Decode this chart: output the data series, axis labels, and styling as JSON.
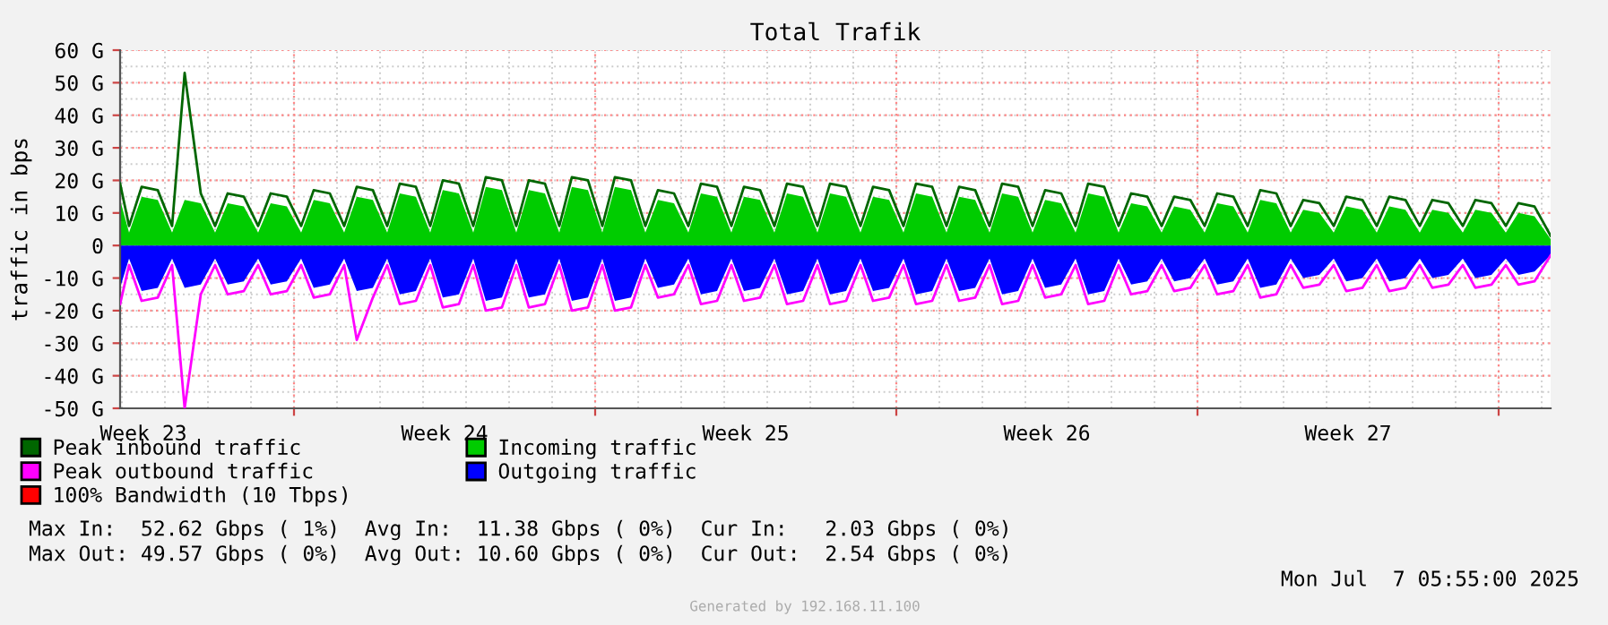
{
  "chart_data": {
    "type": "area",
    "title": "Total Trafik",
    "ylabel": "traffic in bps",
    "x": [
      "2025-06-04T23:00",
      "2025-06-05T04:00",
      "2025-06-05T11:00",
      "2025-06-05T20:00",
      "2025-06-06T04:00",
      "2025-06-06T11:00",
      "2025-06-06T20:00",
      "2025-06-07T04:00",
      "2025-06-07T11:00",
      "2025-06-07T20:00",
      "2025-06-08T04:00",
      "2025-06-08T11:00",
      "2025-06-08T20:00",
      "2025-06-09T04:00",
      "2025-06-09T11:00",
      "2025-06-09T20:00",
      "2025-06-10T04:00",
      "2025-06-10T11:00",
      "2025-06-10T20:00",
      "2025-06-11T04:00",
      "2025-06-11T11:00",
      "2025-06-11T20:00",
      "2025-06-12T04:00",
      "2025-06-12T11:00",
      "2025-06-12T20:00",
      "2025-06-13T04:00",
      "2025-06-13T11:00",
      "2025-06-13T20:00",
      "2025-06-14T04:00",
      "2025-06-14T11:00",
      "2025-06-14T20:00",
      "2025-06-15T04:00",
      "2025-06-15T11:00",
      "2025-06-15T20:00",
      "2025-06-16T04:00",
      "2025-06-16T11:00",
      "2025-06-16T20:00",
      "2025-06-17T04:00",
      "2025-06-17T11:00",
      "2025-06-17T20:00",
      "2025-06-18T04:00",
      "2025-06-18T11:00",
      "2025-06-18T20:00",
      "2025-06-19T04:00",
      "2025-06-19T11:00",
      "2025-06-19T20:00",
      "2025-06-20T04:00",
      "2025-06-20T11:00",
      "2025-06-20T20:00",
      "2025-06-21T04:00",
      "2025-06-21T11:00",
      "2025-06-21T20:00",
      "2025-06-22T04:00",
      "2025-06-22T11:00",
      "2025-06-22T20:00",
      "2025-06-23T04:00",
      "2025-06-23T11:00",
      "2025-06-23T20:00",
      "2025-06-24T04:00",
      "2025-06-24T11:00",
      "2025-06-24T20:00",
      "2025-06-25T04:00",
      "2025-06-25T11:00",
      "2025-06-25T20:00",
      "2025-06-26T04:00",
      "2025-06-26T11:00",
      "2025-06-26T20:00",
      "2025-06-27T04:00",
      "2025-06-27T11:00",
      "2025-06-27T20:00",
      "2025-06-28T04:00",
      "2025-06-28T11:00",
      "2025-06-28T20:00",
      "2025-06-29T04:00",
      "2025-06-29T11:00",
      "2025-06-29T20:00",
      "2025-06-30T04:00",
      "2025-06-30T11:00",
      "2025-06-30T20:00",
      "2025-07-01T04:00",
      "2025-07-01T11:00",
      "2025-07-01T20:00",
      "2025-07-02T04:00",
      "2025-07-02T11:00",
      "2025-07-02T20:00",
      "2025-07-03T04:00",
      "2025-07-03T11:00",
      "2025-07-03T20:00",
      "2025-07-04T04:00",
      "2025-07-04T11:00",
      "2025-07-04T20:00",
      "2025-07-05T04:00",
      "2025-07-05T11:00",
      "2025-07-05T20:00",
      "2025-07-06T04:00",
      "2025-07-06T11:00",
      "2025-07-06T20:00",
      "2025-07-07T04:00",
      "2025-07-07T11:00",
      "2025-07-07T20:00",
      "2025-07-08T05:00"
    ],
    "series": [
      {
        "name": "Peak inbound traffic",
        "type": "line",
        "color": "#006600",
        "values": [
          19,
          6,
          18,
          17,
          6,
          53,
          16,
          6,
          16,
          15,
          6,
          16,
          15,
          6,
          17,
          16,
          6,
          18,
          17,
          6,
          19,
          18,
          6,
          20,
          19,
          6,
          21,
          20,
          6,
          20,
          19,
          6,
          21,
          20,
          6,
          21,
          20,
          6,
          17,
          16,
          6,
          19,
          18,
          6,
          18,
          17,
          6,
          19,
          18,
          6,
          19,
          18,
          6,
          18,
          17,
          6,
          19,
          18,
          6,
          18,
          17,
          6,
          19,
          18,
          6,
          17,
          16,
          6,
          19,
          18,
          6,
          16,
          15,
          6,
          15,
          14,
          6,
          16,
          15,
          6,
          17,
          16,
          6,
          14,
          13,
          6,
          15,
          14,
          6,
          15,
          14,
          6,
          14,
          13,
          6,
          14,
          13,
          6,
          13,
          12,
          3
        ]
      },
      {
        "name": "Incoming traffic",
        "color": "#00cc00",
        "values": [
          14,
          4,
          15,
          14,
          4,
          14,
          13,
          4,
          13,
          12,
          4,
          13,
          12,
          4,
          14,
          13,
          4,
          15,
          14,
          4,
          16,
          15,
          4,
          17,
          16,
          4,
          18,
          17,
          4,
          17,
          16,
          4,
          18,
          17,
          4,
          18,
          17,
          4,
          14,
          13,
          4,
          16,
          15,
          4,
          15,
          14,
          4,
          16,
          15,
          4,
          16,
          15,
          4,
          15,
          14,
          4,
          16,
          15,
          4,
          15,
          14,
          4,
          16,
          15,
          4,
          14,
          13,
          4,
          16,
          15,
          4,
          13,
          12,
          4,
          12,
          11,
          4,
          13,
          12,
          4,
          14,
          13,
          4,
          11,
          10,
          4,
          12,
          11,
          4,
          12,
          11,
          4,
          11,
          10,
          4,
          11,
          10,
          4,
          10,
          9,
          2
        ]
      },
      {
        "name": "Peak outbound traffic",
        "type": "line",
        "color": "#ff00ff",
        "values": [
          -18,
          -6,
          -17,
          -16,
          -6,
          -50,
          -15,
          -6,
          -15,
          -14,
          -6,
          -15,
          -14,
          -6,
          -16,
          -15,
          -6,
          -29,
          -16,
          -6,
          -18,
          -17,
          -6,
          -19,
          -18,
          -6,
          -20,
          -19,
          -6,
          -19,
          -18,
          -6,
          -20,
          -19,
          -6,
          -20,
          -19,
          -6,
          -16,
          -15,
          -6,
          -18,
          -17,
          -6,
          -17,
          -16,
          -6,
          -18,
          -17,
          -6,
          -18,
          -17,
          -6,
          -17,
          -16,
          -6,
          -18,
          -17,
          -6,
          -17,
          -16,
          -6,
          -18,
          -17,
          -6,
          -16,
          -15,
          -6,
          -18,
          -17,
          -6,
          -15,
          -14,
          -6,
          -14,
          -13,
          -6,
          -15,
          -14,
          -6,
          -16,
          -15,
          -6,
          -13,
          -12,
          -6,
          -14,
          -13,
          -6,
          -14,
          -13,
          -6,
          -13,
          -12,
          -6,
          -13,
          -12,
          -6,
          -12,
          -11,
          -3
        ]
      },
      {
        "name": "Outgoing traffic",
        "color": "#0000ff",
        "values": [
          -13,
          -4,
          -14,
          -13,
          -4,
          -13,
          -12,
          -4,
          -12,
          -11,
          -4,
          -12,
          -11,
          -4,
          -13,
          -12,
          -4,
          -14,
          -13,
          -4,
          -15,
          -14,
          -4,
          -16,
          -15,
          -4,
          -17,
          -16,
          -4,
          -16,
          -15,
          -4,
          -17,
          -16,
          -4,
          -17,
          -16,
          -4,
          -13,
          -12,
          -4,
          -15,
          -14,
          -4,
          -14,
          -13,
          -4,
          -15,
          -14,
          -4,
          -15,
          -14,
          -4,
          -14,
          -13,
          -4,
          -15,
          -14,
          -4,
          -14,
          -13,
          -4,
          -15,
          -14,
          -4,
          -13,
          -12,
          -4,
          -15,
          -14,
          -4,
          -12,
          -11,
          -4,
          -11,
          -10,
          -4,
          -12,
          -11,
          -4,
          -13,
          -12,
          -4,
          -10,
          -9,
          -4,
          -11,
          -10,
          -4,
          -11,
          -10,
          -4,
          -10,
          -9,
          -4,
          -10,
          -9,
          -4,
          -9,
          -8,
          -3
        ]
      },
      {
        "name": "100% Bandwidth (10 Tbps)",
        "type": "line",
        "color": "#ff0000",
        "values": [
          null,
          null,
          null,
          null,
          null,
          null,
          null,
          null,
          null,
          null,
          null,
          null,
          null,
          null,
          null,
          null,
          null,
          null,
          null,
          null,
          null,
          null,
          null,
          null,
          null,
          null,
          null,
          null,
          null,
          null,
          null,
          null,
          null,
          null,
          null,
          null,
          null,
          null,
          null,
          null,
          null,
          null,
          null,
          null,
          null,
          null,
          null,
          null,
          null,
          null,
          null,
          null,
          null,
          null,
          null,
          null,
          null,
          null,
          null,
          null,
          null,
          null,
          null,
          null,
          null,
          null,
          null,
          null,
          null,
          null,
          null,
          null,
          null,
          null,
          null,
          null,
          null,
          null,
          null,
          null,
          null,
          null,
          null,
          null,
          null,
          null,
          null,
          null,
          null,
          null,
          null,
          null,
          null,
          null,
          null,
          null,
          null,
          null,
          null,
          null,
          null
        ]
      }
    ],
    "xlim": [
      "2025-06-04T23:00",
      "2025-07-08T05:00"
    ],
    "xticks": [
      {
        "value": "2025-06-05T12:00",
        "label": "Week 23"
      },
      {
        "value": "2025-06-09T00:00",
        "label": null
      },
      {
        "value": "2025-06-12T12:00",
        "label": "Week 24"
      },
      {
        "value": "2025-06-16T00:00",
        "label": null
      },
      {
        "value": "2025-06-19T12:00",
        "label": "Week 25"
      },
      {
        "value": "2025-06-23T00:00",
        "label": null
      },
      {
        "value": "2025-06-26T12:00",
        "label": "Week 26"
      },
      {
        "value": "2025-06-30T00:00",
        "label": null
      },
      {
        "value": "2025-07-03T12:00",
        "label": "Week 27"
      },
      {
        "value": "2025-07-07T00:00",
        "label": null
      }
    ],
    "ylim": [
      -50,
      60
    ],
    "yticks": [
      {
        "value": -50,
        "label": "-50 G"
      },
      {
        "value": -40,
        "label": "-40 G"
      },
      {
        "value": -30,
        "label": "-30 G"
      },
      {
        "value": -20,
        "label": "-20 G"
      },
      {
        "value": -10,
        "label": "-10 G"
      },
      0,
      {
        "value": 10,
        "label": "10 G"
      },
      {
        "value": 20,
        "label": "20 G"
      },
      {
        "value": 30,
        "label": "30 G"
      },
      {
        "value": 40,
        "label": "40 G"
      },
      {
        "value": 50,
        "label": "50 G"
      },
      {
        "value": 60,
        "label": "60 G"
      }
    ],
    "grid": true,
    "legend": "bottom",
    "annotations": [
      "Max In:  52.62 Gbps ( 1%)  Avg In:  11.38 Gbps ( 0%)  Cur In:   2.03 Gbps ( 0%)",
      "Max Out: 49.57 Gbps ( 0%)  Avg Out: 10.60 Gbps ( 0%)  Cur Out:  2.54 Gbps ( 0%)",
      "Mon Jul  7 05:55:00 2025",
      "Generated by 192.168.11.100"
    ]
  }
}
